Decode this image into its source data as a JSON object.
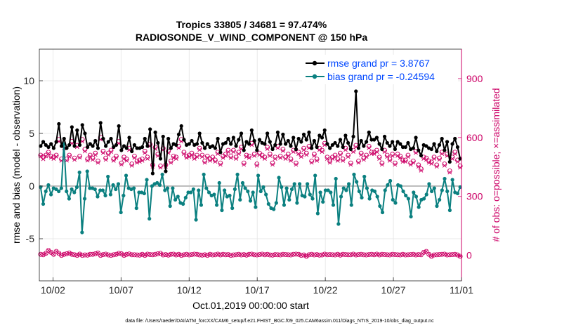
{
  "chart_data": {
    "type": "line",
    "title": "Tropics 33805 / 34681 = 97.474%",
    "subtitle": "RADIOSONDE_V_WIND_COMPONENT @ 150 hPa",
    "xlabel": "Oct.01,2019 00:00:00 start",
    "ylabel": "rmse and bias (model - observation)",
    "ylabel_right": "# of obs: o=possible; ×=assimilated",
    "footnote": "data file: /Users/raeder/DAI/ATM_forcXX/CAM6_setup/f.e21.FHIST_BGC.f09_025.CAM6assim.011/Diags_NTrS_2019-10/obs_diag_output.nc",
    "xlim": [
      0.5,
      31.5
    ],
    "ylim": [
      -9,
      13
    ],
    "ylim_right": [
      -130,
      1050
    ],
    "x_ticks": [
      1.5,
      6.5,
      11.5,
      16.5,
      21.5,
      26.5,
      31.5
    ],
    "x_tick_labels": [
      "10/02",
      "10/07",
      "10/12",
      "10/17",
      "10/22",
      "10/27",
      "11/01"
    ],
    "y_ticks": [
      -5,
      0,
      5,
      10
    ],
    "y_tick_labels": [
      "-5",
      "0",
      "5",
      "10"
    ],
    "y_ticks_right": [
      0,
      300,
      600,
      900
    ],
    "y_tick_labels_right": [
      "0",
      "300",
      "600",
      "900"
    ],
    "grid": true,
    "legend_position": "top-right",
    "colors": {
      "rmse": "#000000",
      "bias": "#0b8080",
      "obs": "#cc0066",
      "legend_text": "#0047ff"
    },
    "series": [
      {
        "name": "rmse grand pr = 3.8767",
        "color": "#000000",
        "values": [
          3.8,
          4.2,
          3.9,
          3.7,
          4.0,
          3.6,
          4.2,
          5.9,
          3.8,
          4.5,
          3.6,
          3.9,
          5.6,
          3.8,
          5.3,
          3.9,
          5.8,
          5.0,
          3.7,
          4.0,
          3.8,
          4.3,
          3.6,
          6.0,
          4.5,
          3.8,
          4.2,
          4.5,
          3.7,
          3.9,
          5.7,
          3.4,
          3.8,
          3.6,
          4.6,
          3.3,
          3.9,
          3.6,
          3.6,
          3.7,
          4.5,
          3.8,
          5.4,
          1.2,
          5.1,
          4.1,
          2.6,
          4.7,
          1.4,
          4.5,
          3.6,
          4.0,
          3.9,
          4.9,
          5.7,
          4.4,
          3.9,
          4.0,
          4.3,
          3.9,
          4.0,
          5.0,
          4.1,
          3.6,
          4.0,
          3.7,
          3.8,
          3.6,
          4.5,
          3.2,
          4.0,
          4.1,
          4.5,
          4.0,
          4.6,
          3.8,
          4.4,
          5.0,
          3.4,
          4.2,
          4.0,
          5.3,
          4.3,
          3.4,
          4.4,
          4.1,
          4.0,
          5.0,
          4.2,
          3.5,
          3.9,
          5.1,
          4.0,
          4.9,
          4.0,
          4.3,
          3.8,
          4.6,
          3.5,
          4.5,
          4.2,
          4.9,
          4.4,
          5.1,
          3.6,
          4.3,
          3.7,
          4.8,
          4.6,
          5.3,
          4.0,
          3.6,
          3.9,
          4.1,
          3.8,
          4.4,
          3.7,
          4.8,
          4.1,
          3.5,
          4.7,
          9.0,
          3.6,
          4.3,
          3.8,
          4.2,
          5.1,
          4.4,
          4.4,
          4.6,
          4.0,
          3.5,
          4.7,
          4.1,
          3.8,
          4.2,
          3.5,
          4.2,
          4.0,
          3.7,
          3.7,
          4.1,
          3.5,
          3.6,
          4.6,
          3.4,
          2.9,
          3.9,
          3.8,
          3.6,
          3.5,
          4.0,
          3.3,
          3.9,
          4.5,
          3.4,
          4.2,
          2.3,
          4.0,
          4.5,
          3.7,
          2.6
        ]
      },
      {
        "name": "bias grand pr = -0.24594",
        "color": "#0b8080",
        "values": [
          -0.1,
          -1.7,
          -0.5,
          0.1,
          -0.8,
          -0.2,
          -0.3,
          -0.5,
          -0.2,
          4.0,
          -0.5,
          -1.2,
          -0.3,
          -0.6,
          -0.1,
          1.3,
          -4.4,
          -1.2,
          1.4,
          -0.2,
          -0.2,
          -0.3,
          -1.0,
          -0.4,
          -0.4,
          -0.9,
          0.9,
          -0.8,
          0.1,
          -0.3,
          0.2,
          -2.5,
          -0.9,
          1.0,
          -0.2,
          -0.3,
          -0.2,
          -2.1,
          -0.6,
          -0.6,
          -0.7,
          0.6,
          -3.1,
          0.0,
          0.2,
          0.3,
          0.1,
          1.1,
          -0.4,
          -0.2,
          -1.9,
          -0.2,
          -1.3,
          -1.0,
          -1.6,
          -1.7,
          -1.1,
          -0.6,
          -0.6,
          -0.3,
          -3.2,
          -0.4,
          -1.8,
          1.1,
          -0.2,
          -0.6,
          -0.9,
          -0.8,
          -1.8,
          0.3,
          -2.3,
          -0.4,
          -1.0,
          -0.9,
          -2.1,
          -0.3,
          1.1,
          -1.3,
          0.3,
          -0.2,
          -0.5,
          -1.4,
          -0.6,
          -2.0,
          1.0,
          -0.5,
          -0.1,
          -0.8,
          -1.7,
          -2.1,
          -2.2,
          -1.6,
          0.8,
          -0.1,
          -1.8,
          -0.2,
          -1.3,
          -0.3,
          0.2,
          -1.6,
          0.2,
          -0.9,
          -1.0,
          0.2,
          -0.8,
          -1.2,
          1.0,
          -2.6,
          -0.6,
          -1.5,
          -0.4,
          -0.4,
          -0.6,
          -1.8,
          0.7,
          -3.6,
          -1.0,
          -0.2,
          -0.4,
          0.2,
          -1.8,
          1.1,
          0.4,
          -0.5,
          -1.1,
          0.9,
          -0.2,
          -1.2,
          -0.4,
          -0.5,
          -1.0,
          -1.9,
          -2.5,
          -0.4,
          0.1,
          0.5,
          -1.3,
          -1.6,
          0.1,
          0.0,
          -0.5,
          -0.9,
          -1.2,
          -2.9,
          -0.6,
          -1.0,
          -2.0,
          -1.3,
          -1.2,
          -0.8,
          0.2,
          -0.5,
          -0.2,
          -1.9,
          -1.3,
          -0.4,
          0.7,
          -0.5,
          -2.3,
          0.6,
          -0.6,
          -0.7,
          -0.1
        ]
      }
    ],
    "obs_possible_approx": [
      510,
      500,
      510,
      525,
      505,
      500,
      510,
      590,
      490,
      555,
      490,
      510,
      580,
      495,
      560,
      505,
      590,
      540,
      490,
      510,
      495,
      520,
      480,
      600,
      530,
      495,
      520,
      535,
      490,
      505,
      580,
      470,
      500,
      490,
      545,
      465,
      505,
      480,
      485,
      490,
      530,
      500,
      565,
      460,
      550,
      515,
      455,
      545,
      460,
      530,
      480,
      505,
      500,
      555,
      590,
      525,
      505,
      510,
      520,
      500,
      510,
      545,
      510,
      480,
      505,
      490,
      500,
      485,
      525,
      470,
      505,
      515,
      535,
      505,
      535,
      500,
      525,
      550,
      470,
      510,
      505,
      570,
      515,
      465,
      520,
      510,
      500,
      550,
      515,
      470,
      500,
      555,
      505,
      540,
      500,
      515,
      490,
      535,
      470,
      525,
      510,
      545,
      520,
      555,
      480,
      515,
      490,
      545,
      535,
      570,
      500,
      480,
      500,
      510,
      490,
      520,
      490,
      545,
      510,
      470,
      535,
      560,
      480,
      520,
      495,
      510,
      555,
      525,
      525,
      535,
      500,
      470,
      535,
      510,
      490,
      515,
      470,
      515,
      505,
      485,
      485,
      510,
      470,
      480,
      530,
      460,
      440,
      500,
      495,
      480,
      475,
      500,
      460,
      495,
      525,
      465,
      515,
      430,
      500,
      525,
      485,
      455
    ],
    "obs_assimilated_approx": [
      505,
      490,
      505,
      518,
      498,
      492,
      503,
      580,
      482,
      545,
      483,
      503,
      570,
      487,
      552,
      498,
      580,
      530,
      483,
      503,
      487,
      512,
      472,
      590,
      522,
      487,
      512,
      527,
      482,
      497,
      570,
      463,
      492,
      482,
      537,
      457,
      497,
      472,
      477,
      482,
      522,
      492,
      557,
      452,
      542,
      507,
      447,
      537,
      452,
      522,
      472,
      497,
      492,
      547,
      580,
      517,
      497,
      502,
      512,
      492,
      502,
      537,
      502,
      472,
      497,
      482,
      492,
      477,
      517,
      462,
      497,
      507,
      527,
      497,
      527,
      492,
      517,
      542,
      462,
      502,
      497,
      562,
      507,
      457,
      512,
      502,
      492,
      542,
      507,
      462,
      492,
      547,
      497,
      532,
      492,
      507,
      482,
      527,
      462,
      517,
      502,
      537,
      512,
      547,
      472,
      507,
      482,
      537,
      527,
      562,
      492,
      472,
      492,
      502,
      482,
      512,
      482,
      537,
      502,
      462,
      527,
      552,
      472,
      512,
      487,
      502,
      547,
      517,
      517,
      527,
      492,
      462,
      527,
      502,
      482,
      507,
      462,
      507,
      497,
      477,
      477,
      502,
      462,
      472,
      522,
      452,
      432,
      492,
      487,
      472,
      467,
      492,
      452,
      487,
      517,
      457,
      507,
      422,
      492,
      517,
      477,
      447
    ],
    "low_obs_approx": [
      5,
      3,
      10,
      25,
      15,
      5,
      20,
      10,
      0,
      5,
      8,
      12,
      5,
      3,
      0,
      6,
      0,
      2,
      1,
      5,
      5,
      8,
      12,
      0,
      4,
      6,
      2,
      0,
      3,
      5,
      10,
      8,
      0,
      5,
      7,
      3,
      3,
      2,
      1,
      5,
      0,
      6,
      4,
      3,
      5,
      8,
      10,
      2,
      4,
      1,
      5,
      6,
      2,
      5,
      0,
      3,
      5,
      2,
      4,
      6,
      5,
      2,
      1,
      3,
      0,
      5,
      2,
      3,
      6,
      2,
      5,
      3,
      4,
      0,
      2,
      3,
      5,
      2,
      4,
      1,
      5,
      6,
      3,
      2,
      4,
      6,
      3,
      5,
      2,
      1,
      4,
      3,
      2,
      5,
      4,
      3,
      2,
      5,
      6,
      5,
      0,
      2,
      -5,
      3,
      5,
      2,
      4,
      1,
      2,
      6,
      3,
      4,
      3,
      2,
      5,
      1,
      5,
      4,
      3,
      3,
      6,
      2,
      4,
      5,
      3,
      2,
      4,
      5,
      3,
      6,
      2,
      5,
      4,
      3,
      2,
      5,
      4,
      3,
      2,
      5,
      2,
      3,
      4,
      5,
      2,
      4,
      3,
      15,
      20,
      5,
      -5,
      2,
      3,
      4,
      5,
      6,
      2,
      3,
      4,
      5,
      2,
      -5
    ]
  }
}
